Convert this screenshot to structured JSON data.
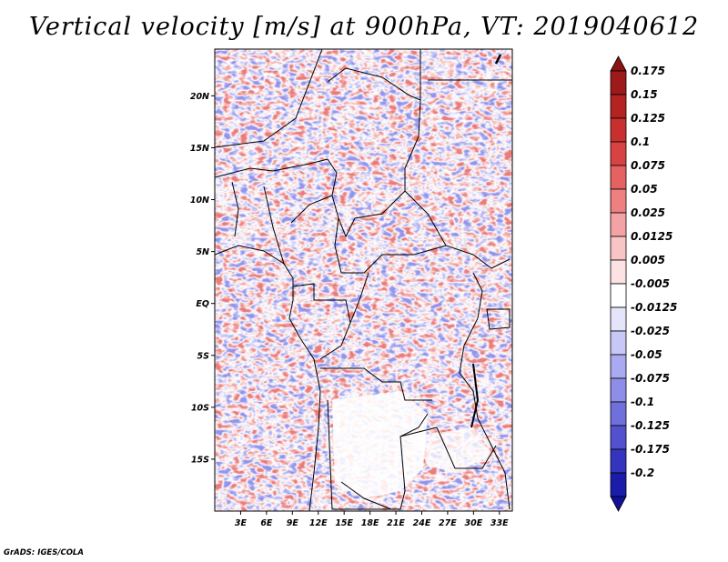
{
  "title": "Vertical velocity [m/s] at 900hPa, VT: 2019040612",
  "credit": "GrADS: IGES/COLA",
  "map": {
    "lat_range": [
      -20,
      24.5
    ],
    "lon_range": [
      0,
      34.5
    ],
    "lat_ticks": [
      {
        "value": 20,
        "label": "20N"
      },
      {
        "value": 15,
        "label": "15N"
      },
      {
        "value": 10,
        "label": "10N"
      },
      {
        "value": 5,
        "label": "5N"
      },
      {
        "value": 0,
        "label": "EQ"
      },
      {
        "value": -5,
        "label": "5S"
      },
      {
        "value": -10,
        "label": "10S"
      },
      {
        "value": -15,
        "label": "15S"
      }
    ],
    "lon_ticks": [
      {
        "value": 3,
        "label": "3E"
      },
      {
        "value": 6,
        "label": "6E"
      },
      {
        "value": 9,
        "label": "9E"
      },
      {
        "value": 12,
        "label": "12E"
      },
      {
        "value": 15,
        "label": "15E"
      },
      {
        "value": 18,
        "label": "18E"
      },
      {
        "value": 21,
        "label": "21E"
      },
      {
        "value": 24,
        "label": "24E"
      },
      {
        "value": 27,
        "label": "27E"
      },
      {
        "value": 30,
        "label": "30E"
      },
      {
        "value": 33,
        "label": "33E"
      }
    ]
  },
  "colorbar": {
    "levels": [
      {
        "label": "0.175",
        "color": "#9e1a1a"
      },
      {
        "label": "0.15",
        "color": "#b42222"
      },
      {
        "label": "0.125",
        "color": "#c83030"
      },
      {
        "label": "0.1",
        "color": "#d94242"
      },
      {
        "label": "0.075",
        "color": "#e56262"
      },
      {
        "label": "0.05",
        "color": "#ee8080"
      },
      {
        "label": "0.025",
        "color": "#f3a3a3"
      },
      {
        "label": "0.0125",
        "color": "#f8c4c4"
      },
      {
        "label": "0.005",
        "color": "#fce2e2"
      },
      {
        "label": "-0.005",
        "color": "#ffffff"
      },
      {
        "label": "-0.0125",
        "color": "#e4e4fb"
      },
      {
        "label": "-0.025",
        "color": "#c8c8f6"
      },
      {
        "label": "-0.05",
        "color": "#aaaaf0"
      },
      {
        "label": "-0.075",
        "color": "#8e8ee8"
      },
      {
        "label": "-0.1",
        "color": "#7070dc"
      },
      {
        "label": "-0.125",
        "color": "#5252cf"
      },
      {
        "label": "-0.175",
        "color": "#3434be"
      },
      {
        "label": "-0.2",
        "color": "#1c1caa"
      }
    ],
    "top_arrow_color": "#8a1212",
    "bottom_arrow_color": "#10109a"
  }
}
